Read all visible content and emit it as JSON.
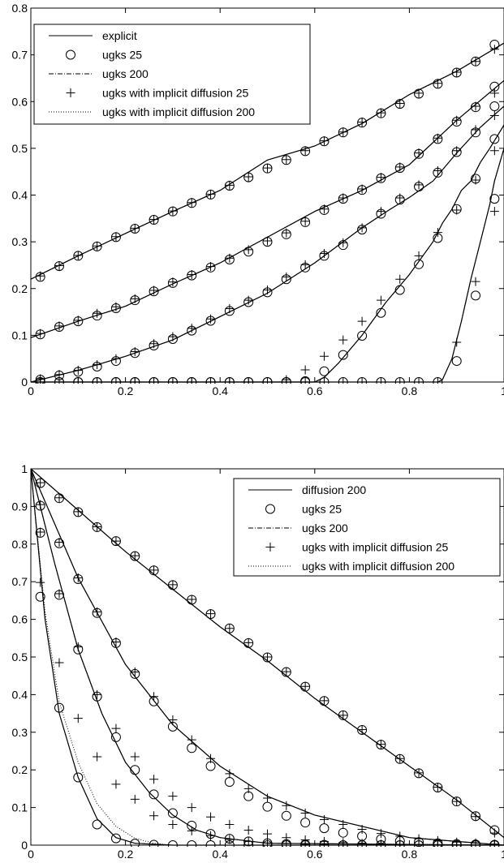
{
  "chart_data": [
    {
      "type": "line",
      "xlim": [
        0,
        1
      ],
      "ylim": [
        0,
        0.8
      ],
      "xticks": [
        "0",
        "0.2",
        "0.4",
        "0.6",
        "0.8",
        "1"
      ],
      "yticks": [
        "0",
        "0.1",
        "0.2",
        "0.3",
        "0.4",
        "0.5",
        "0.6",
        "0.7",
        "0.8"
      ],
      "grid": false,
      "legend_position": "top-left",
      "legend": [
        {
          "label": "explicit",
          "style": "solid"
        },
        {
          "label": "ugks 25",
          "style": "circle"
        },
        {
          "label": "ugks 200",
          "style": "dashdot"
        },
        {
          "label": "ugks with implicit diffusion 25",
          "style": "plus"
        },
        {
          "label": "ugks with implicit diffusion 200",
          "style": "dotted"
        }
      ],
      "x": [
        0.02,
        0.06,
        0.1,
        0.14,
        0.18,
        0.22,
        0.26,
        0.3,
        0.34,
        0.38,
        0.42,
        0.46,
        0.5,
        0.54,
        0.58,
        0.62,
        0.66,
        0.7,
        0.74,
        0.78,
        0.82,
        0.86,
        0.9,
        0.94,
        0.98
      ],
      "series": [
        {
          "line": [
            [
              0,
              0.22
            ],
            [
              0.1,
              0.27
            ],
            [
              0.2,
              0.318
            ],
            [
              0.3,
              0.365
            ],
            [
              0.4,
              0.41
            ],
            [
              0.5,
              0.475
            ],
            [
              0.6,
              0.505
            ],
            [
              0.7,
              0.553
            ],
            [
              0.8,
              0.615
            ],
            [
              0.9,
              0.665
            ],
            [
              1.0,
              0.725
            ]
          ],
          "ugks25": [
            0.225,
            0.248,
            0.27,
            0.29,
            0.31,
            0.328,
            0.347,
            0.365,
            0.383,
            0.401,
            0.42,
            0.438,
            0.457,
            0.475,
            0.494,
            0.515,
            0.534,
            0.555,
            0.575,
            0.595,
            0.617,
            0.638,
            0.662,
            0.686,
            0.722
          ],
          "implicit25": [
            0.227,
            0.249,
            0.271,
            0.291,
            0.311,
            0.329,
            0.348,
            0.366,
            0.384,
            0.402,
            0.421,
            0.439,
            0.458,
            0.476,
            0.495,
            0.516,
            0.535,
            0.556,
            0.576,
            0.596,
            0.618,
            0.639,
            0.663,
            0.686,
            0.712
          ]
        },
        {
          "line": [
            [
              0,
              0.095
            ],
            [
              0.1,
              0.13
            ],
            [
              0.2,
              0.162
            ],
            [
              0.3,
              0.21
            ],
            [
              0.4,
              0.255
            ],
            [
              0.5,
              0.31
            ],
            [
              0.6,
              0.365
            ],
            [
              0.7,
              0.41
            ],
            [
              0.8,
              0.465
            ],
            [
              0.9,
              0.56
            ],
            [
              1.0,
              0.645
            ]
          ],
          "ugks25": [
            0.102,
            0.118,
            0.13,
            0.142,
            0.158,
            0.175,
            0.194,
            0.212,
            0.228,
            0.245,
            0.262,
            0.279,
            0.3,
            0.316,
            0.342,
            0.368,
            0.392,
            0.411,
            0.436,
            0.458,
            0.488,
            0.52,
            0.557,
            0.588,
            0.632
          ],
          "implicit25": [
            0.104,
            0.12,
            0.132,
            0.147,
            0.161,
            0.178,
            0.196,
            0.214,
            0.23,
            0.247,
            0.265,
            0.283,
            0.302,
            0.319,
            0.344,
            0.37,
            0.394,
            0.413,
            0.438,
            0.46,
            0.49,
            0.522,
            0.56,
            0.59,
            0.618
          ]
        },
        {
          "line": [
            [
              0,
              0.0
            ],
            [
              0.1,
              0.025
            ],
            [
              0.2,
              0.055
            ],
            [
              0.3,
              0.09
            ],
            [
              0.4,
              0.14
            ],
            [
              0.5,
              0.19
            ],
            [
              0.6,
              0.255
            ],
            [
              0.7,
              0.33
            ],
            [
              0.76,
              0.37
            ],
            [
              0.8,
              0.395
            ],
            [
              0.85,
              0.43
            ],
            [
              0.9,
              0.49
            ],
            [
              0.95,
              0.545
            ],
            [
              1.0,
              0.59
            ]
          ],
          "ugks25": [
            0.005,
            0.014,
            0.022,
            0.033,
            0.045,
            0.062,
            0.078,
            0.092,
            0.11,
            0.131,
            0.152,
            0.171,
            0.192,
            0.22,
            0.245,
            0.27,
            0.293,
            0.326,
            0.36,
            0.39,
            0.418,
            0.448,
            0.492,
            0.534,
            0.59
          ],
          "implicit25": [
            0.007,
            0.016,
            0.025,
            0.037,
            0.05,
            0.065,
            0.082,
            0.097,
            0.115,
            0.135,
            0.157,
            0.175,
            0.197,
            0.225,
            0.251,
            0.275,
            0.298,
            0.33,
            0.365,
            0.394,
            0.422,
            0.452,
            0.495,
            0.54,
            0.57
          ]
        },
        {
          "line": [
            [
              0,
              0.0
            ],
            [
              0.6,
              0.0
            ],
            [
              0.62,
              0.01
            ],
            [
              0.65,
              0.04
            ],
            [
              0.7,
              0.1
            ],
            [
              0.75,
              0.17
            ],
            [
              0.8,
              0.23
            ],
            [
              0.85,
              0.3
            ],
            [
              0.87,
              0.34
            ],
            [
              0.89,
              0.37
            ],
            [
              0.91,
              0.41
            ],
            [
              0.93,
              0.43
            ],
            [
              0.95,
              0.47
            ],
            [
              0.97,
              0.5
            ],
            [
              1.0,
              0.55
            ]
          ],
          "ugks25": [
            0,
            0,
            0,
            0,
            0,
            0,
            0,
            0,
            0,
            0,
            0,
            0,
            0,
            0,
            0.002,
            0.023,
            0.058,
            0.099,
            0.148,
            0.197,
            0.252,
            0.308,
            0.37,
            0.435,
            0.52
          ],
          "implicit25": [
            0,
            0,
            0,
            0,
            0,
            0,
            0,
            0,
            0,
            0,
            0,
            0,
            0,
            0.005,
            0.026,
            0.055,
            0.09,
            0.13,
            0.175,
            0.22,
            0.27,
            0.32,
            0.368,
            0.432,
            0.495
          ]
        },
        {
          "line": [
            [
              0,
              0.0
            ],
            [
              0.86,
              0.0
            ],
            [
              0.87,
              0.005
            ],
            [
              0.89,
              0.05
            ],
            [
              0.91,
              0.13
            ],
            [
              0.93,
              0.22
            ],
            [
              0.95,
              0.3
            ],
            [
              0.97,
              0.38
            ],
            [
              0.98,
              0.43
            ],
            [
              1.0,
              0.5
            ]
          ],
          "ugks25": [
            0,
            0,
            0,
            0,
            0,
            0,
            0,
            0,
            0,
            0,
            0,
            0,
            0,
            0,
            0,
            0,
            0,
            0,
            0,
            0,
            0,
            0,
            0.045,
            0.185,
            0.392
          ],
          "implicit25": [
            0,
            0,
            0,
            0,
            0,
            0,
            0,
            0,
            0,
            0,
            0,
            0,
            0,
            0,
            0,
            0,
            0,
            0,
            0,
            0,
            0,
            0,
            0.085,
            0.215,
            0.365
          ]
        }
      ]
    },
    {
      "type": "line",
      "xlim": [
        0,
        1
      ],
      "ylim": [
        0,
        1
      ],
      "xticks": [
        "0",
        "0.2",
        "0.4",
        "0.6",
        "0.8",
        "1"
      ],
      "yticks": [
        "0",
        "0.1",
        "0.2",
        "0.3",
        "0.4",
        "0.5",
        "0.6",
        "0.7",
        "0.8",
        "0.9",
        "1"
      ],
      "grid": false,
      "legend_position": "top-right",
      "legend": [
        {
          "label": "diffusion 200",
          "style": "solid"
        },
        {
          "label": "ugks 25",
          "style": "circle"
        },
        {
          "label": "ugks 200",
          "style": "dashdot"
        },
        {
          "label": "ugks with implicit diffusion 25",
          "style": "plus"
        },
        {
          "label": "ugks with implicit diffusion 200",
          "style": "dotted"
        }
      ],
      "x": [
        0.02,
        0.06,
        0.1,
        0.14,
        0.18,
        0.22,
        0.26,
        0.3,
        0.34,
        0.38,
        0.42,
        0.46,
        0.5,
        0.54,
        0.58,
        0.62,
        0.66,
        0.7,
        0.74,
        0.78,
        0.82,
        0.86,
        0.9,
        0.94,
        0.98
      ],
      "series": [
        {
          "line": [
            [
              0,
              1.0
            ],
            [
              0.1,
              0.89
            ],
            [
              0.2,
              0.78
            ],
            [
              0.3,
              0.68
            ],
            [
              0.4,
              0.58
            ],
            [
              0.5,
              0.49
            ],
            [
              0.6,
              0.39
            ],
            [
              0.7,
              0.3
            ],
            [
              0.8,
              0.21
            ],
            [
              0.9,
              0.12
            ],
            [
              1.0,
              0.02
            ]
          ],
          "ugks25": [
            0.962,
            0.922,
            0.885,
            0.845,
            0.808,
            0.768,
            0.73,
            0.691,
            0.652,
            0.614,
            0.576,
            0.537,
            0.499,
            0.46,
            0.421,
            0.383,
            0.345,
            0.306,
            0.267,
            0.229,
            0.191,
            0.153,
            0.116,
            0.077,
            0.04
          ],
          "implicit25": [
            0.963,
            0.923,
            0.886,
            0.846,
            0.808,
            0.769,
            0.731,
            0.692,
            0.653,
            0.615,
            0.576,
            0.538,
            0.5,
            0.461,
            0.422,
            0.384,
            0.345,
            0.307,
            0.268,
            0.23,
            0.192,
            0.154,
            0.116,
            0.076,
            0.032
          ]
        },
        {
          "line": [
            [
              0,
              1.0
            ],
            [
              0.1,
              0.71
            ],
            [
              0.2,
              0.48
            ],
            [
              0.3,
              0.32
            ],
            [
              0.4,
              0.21
            ],
            [
              0.5,
              0.13
            ],
            [
              0.6,
              0.08
            ],
            [
              0.7,
              0.05
            ],
            [
              0.8,
              0.02
            ],
            [
              0.9,
              0.01
            ],
            [
              1.0,
              0.0
            ]
          ],
          "ugks25": [
            0.902,
            0.802,
            0.707,
            0.617,
            0.537,
            0.455,
            0.382,
            0.315,
            0.258,
            0.21,
            0.168,
            0.13,
            0.102,
            0.078,
            0.06,
            0.045,
            0.033,
            0.024,
            0.016,
            0.011,
            0.008,
            0.005,
            0.003,
            0.002,
            0.001
          ],
          "implicit25": [
            0.905,
            0.805,
            0.71,
            0.62,
            0.54,
            0.46,
            0.395,
            0.333,
            0.28,
            0.23,
            0.19,
            0.15,
            0.125,
            0.105,
            0.085,
            0.068,
            0.055,
            0.042,
            0.031,
            0.024,
            0.017,
            0.012,
            0.008,
            0.006,
            0.003
          ]
        },
        {
          "line": [
            [
              0,
              1.0
            ],
            [
              0.05,
              0.75
            ],
            [
              0.1,
              0.52
            ],
            [
              0.15,
              0.35
            ],
            [
              0.2,
              0.22
            ],
            [
              0.25,
              0.14
            ],
            [
              0.3,
              0.08
            ],
            [
              0.35,
              0.04
            ],
            [
              0.4,
              0.02
            ],
            [
              0.5,
              0.005
            ],
            [
              1.0,
              0.0
            ]
          ],
          "ugks25": [
            0.83,
            0.665,
            0.52,
            0.395,
            0.287,
            0.2,
            0.135,
            0.085,
            0.052,
            0.03,
            0.017,
            0.01,
            0.005,
            0.003,
            0.002,
            0.001,
            0,
            0,
            0,
            0,
            0,
            0,
            0,
            0,
            0
          ],
          "implicit25": [
            0.832,
            0.668,
            0.527,
            0.4,
            0.31,
            0.235,
            0.175,
            0.13,
            0.1,
            0.075,
            0.055,
            0.04,
            0.03,
            0.02,
            0.014,
            0.01,
            0.007,
            0.005,
            0.003,
            0.002,
            0.001,
            0,
            0,
            0,
            0
          ]
        },
        {
          "line": [
            [
              0,
              1.0
            ],
            [
              0.03,
              0.6
            ],
            [
              0.06,
              0.35
            ],
            [
              0.1,
              0.18
            ],
            [
              0.14,
              0.07
            ],
            [
              0.18,
              0.02
            ],
            [
              0.22,
              0.005
            ],
            [
              0.3,
              0.0
            ],
            [
              1.0,
              0.0
            ]
          ],
          "dotted": [
            [
              0,
              1.0
            ],
            [
              0.03,
              0.62
            ],
            [
              0.06,
              0.38
            ],
            [
              0.1,
              0.22
            ],
            [
              0.14,
              0.11
            ],
            [
              0.18,
              0.05
            ],
            [
              0.22,
              0.018
            ],
            [
              0.26,
              0.005
            ],
            [
              0.3,
              0.0
            ]
          ],
          "ugks25": [
            0.66,
            0.365,
            0.18,
            0.055,
            0.018,
            0.004,
            0.001,
            0,
            0,
            0,
            0,
            0,
            0,
            0,
            0,
            0,
            0,
            0,
            0,
            0,
            0,
            0,
            0,
            0,
            0
          ],
          "implicit25": [
            0.698,
            0.485,
            0.337,
            0.235,
            0.162,
            0.122,
            0.078,
            0.055,
            0.038,
            0.025,
            0.015,
            0.01,
            0.006,
            0.004,
            0.002,
            0.001,
            0,
            0,
            0,
            0,
            0,
            0,
            0,
            0,
            0
          ]
        }
      ]
    }
  ]
}
